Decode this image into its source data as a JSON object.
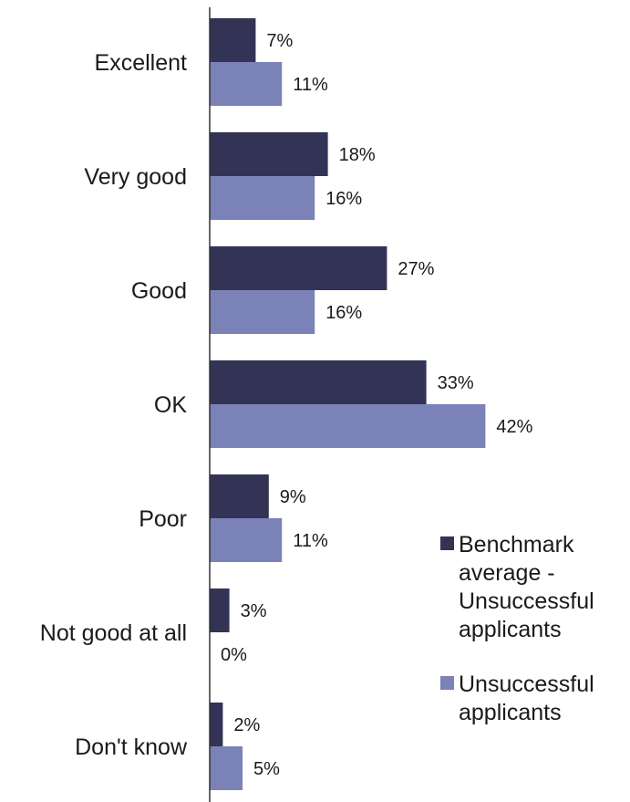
{
  "chart_data": {
    "type": "bar",
    "orientation": "horizontal",
    "categories": [
      "Excellent",
      "Very good",
      "Good",
      "OK",
      "Poor",
      "Not good at all",
      "Don't know"
    ],
    "series": [
      {
        "name": "Benchmark average - Unsuccessful applicants",
        "legend_lines": [
          "Benchmark",
          "average -",
          "Unsuccessful",
          "applicants"
        ],
        "color": "#333355",
        "values": [
          7,
          18,
          27,
          33,
          9,
          3,
          2
        ],
        "labels": [
          "7%",
          "18%",
          "27%",
          "33%",
          "9%",
          "3%",
          "2%"
        ]
      },
      {
        "name": "Unsuccessful applicants",
        "legend_lines": [
          "Unsuccessful",
          "applicants"
        ],
        "color": "#7b82b8",
        "values": [
          11,
          16,
          16,
          42,
          11,
          0,
          5
        ],
        "labels": [
          "11%",
          "16%",
          "16%",
          "42%",
          "11%",
          "0%",
          "5%"
        ]
      }
    ],
    "xlim": [
      0,
      50
    ],
    "grid": false,
    "legend_position": "bottom-right"
  }
}
